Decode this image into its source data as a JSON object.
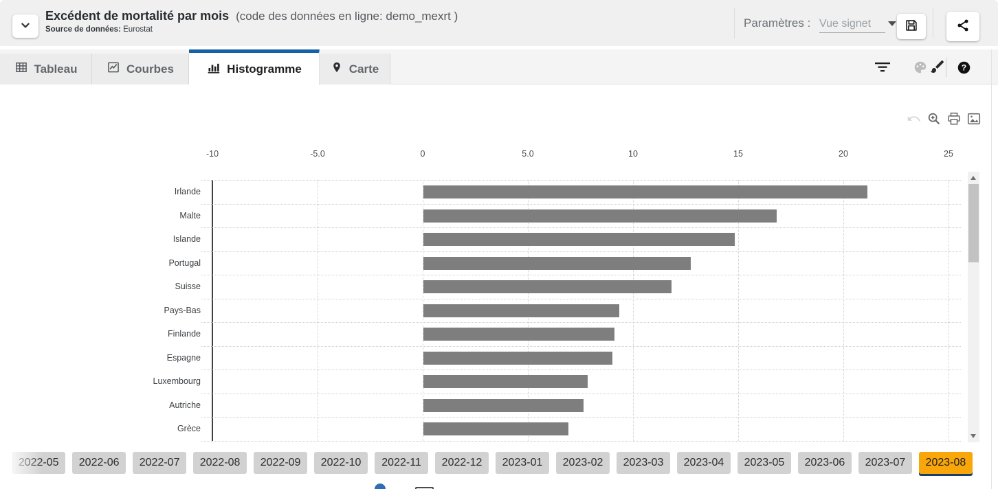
{
  "header": {
    "title": "Excédent de mortalité par mois",
    "code": "(code des données en ligne: demo_mexrt )",
    "source_label": "Source de données:",
    "source_value": "Eurostat",
    "params_label": "Paramètres :",
    "bookmark_select_value": "Vue signet",
    "icons": [
      "chevron-down-icon",
      "save-icon",
      "share-icon",
      "caret-down-icon"
    ]
  },
  "tabs": [
    {
      "label": "Tableau",
      "icon": "table-icon",
      "active": false
    },
    {
      "label": "Courbes",
      "icon": "line-chart-icon",
      "active": false
    },
    {
      "label": "Histogramme",
      "icon": "bar-chart-icon",
      "active": true
    },
    {
      "label": "Carte",
      "icon": "map-pin-icon",
      "active": false
    }
  ],
  "tabbar_tools": {
    "icons": [
      "filter-icon",
      "palette-icon",
      "brush-icon",
      "help-icon"
    ]
  },
  "chart_toolbar": {
    "icons": [
      "undo-icon",
      "zoom-in-icon",
      "print-icon",
      "image-icon"
    ]
  },
  "chart_data": {
    "type": "bar",
    "orientation": "horizontal",
    "categories": [
      "Irlande",
      "Malte",
      "Islande",
      "Portugal",
      "Suisse",
      "Pays-Bas",
      "Finlande",
      "Espagne",
      "Luxembourg",
      "Autriche",
      "Grèce"
    ],
    "values": [
      21.1,
      16.8,
      14.8,
      12.7,
      11.8,
      9.3,
      9.1,
      9.0,
      7.8,
      7.6,
      6.9
    ],
    "x_ticks": [
      "-10",
      "-5.0",
      "0",
      "5.0",
      "10",
      "15",
      "20",
      "25"
    ],
    "x_tick_values": [
      -10,
      -5,
      0,
      5,
      10,
      15,
      20,
      25
    ],
    "xlim": [
      -10,
      25.6
    ],
    "grid": true,
    "legend": false,
    "bar_color": "#7e7e7e",
    "scrollable": true
  },
  "timeline": {
    "months": [
      "2022-05",
      "2022-06",
      "2022-07",
      "2022-08",
      "2022-09",
      "2022-10",
      "2022-11",
      "2022-12",
      "2023-01",
      "2023-02",
      "2023-03",
      "2023-04",
      "2023-05",
      "2023-06",
      "2023-07",
      "2023-08"
    ],
    "selected": "2023-08"
  },
  "colors": {
    "accent_blue": "#1562a9",
    "selected_month_orange": "#f9a60b",
    "selected_month_underline": "#1b3e6c",
    "bar_gray": "#7e7e7e",
    "header_bg": "#f0f0f0"
  }
}
